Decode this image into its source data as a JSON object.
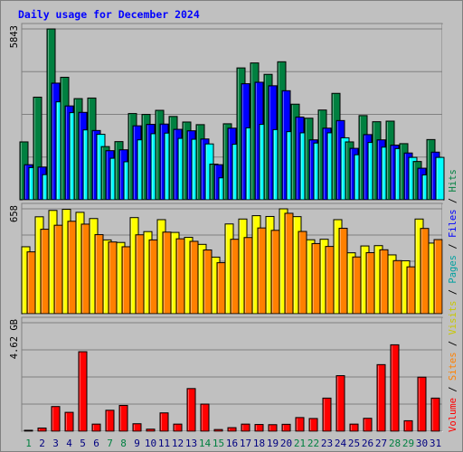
{
  "chart_data": {
    "type": "bar",
    "title": "Daily usage for December 2024",
    "categories": [
      "1",
      "2",
      "3",
      "4",
      "5",
      "6",
      "7",
      "8",
      "9",
      "10",
      "11",
      "12",
      "13",
      "14",
      "15",
      "16",
      "17",
      "18",
      "19",
      "20",
      "21",
      "22",
      "23",
      "24",
      "25",
      "26",
      "27",
      "28",
      "29",
      "30",
      "31"
    ],
    "weekend_days": [
      "1",
      "7",
      "8",
      "14",
      "15",
      "21",
      "22",
      "28",
      "29"
    ],
    "panels": [
      {
        "name": "hits-pages-files",
        "scale_label": "5843",
        "ylim": [
          0,
          5843
        ],
        "series": [
          {
            "name": "Hits",
            "color": "#008040",
            "values": [
              1980,
              3510,
              5843,
              4190,
              3460,
              3480,
              1820,
              1990,
              2950,
              2920,
              3060,
              2850,
              2660,
              2570,
              1220,
              2600,
              4510,
              4680,
              4290,
              4720,
              3270,
              2790,
              3070,
              3640,
              1980,
              2880,
              2670,
              2690,
              1920,
              1310,
              2060
            ]
          },
          {
            "name": "Files",
            "color": "#0000ff",
            "values": [
              1200,
              1120,
              3990,
              3210,
              2990,
              2370,
              1680,
              1710,
              2530,
              2580,
              2590,
              2410,
              2360,
              2080,
              1200,
              2450,
              3970,
              4020,
              3900,
              3730,
              2830,
              2050,
              2450,
              2710,
              1760,
              2230,
              2050,
              1870,
              1600,
              1080,
              1630
            ]
          },
          {
            "name": "Pages",
            "color": "#00ffff",
            "values": [
              1100,
              860,
              3350,
              2980,
              2390,
              2240,
              1420,
              1300,
              2050,
              2260,
              2280,
              2100,
              2070,
              1910,
              750,
              1900,
              2460,
              2580,
              2400,
              2330,
              2290,
              1940,
              2290,
              2120,
              1540,
              1960,
              1800,
              1750,
              1450,
              850,
              1450
            ]
          }
        ]
      },
      {
        "name": "visits-sites",
        "scale_label": "658",
        "ylim": [
          0,
          658
        ],
        "series": [
          {
            "name": "Visits",
            "color": "#ffff00",
            "values": [
              420,
              608,
              648,
              655,
              636,
              597,
              463,
              447,
              603,
              515,
              590,
              510,
              479,
              435,
              355,
              563,
              594,
              615,
              610,
              658,
              609,
              464,
              467,
              590,
              382,
              425,
              427,
              369,
              332,
              594,
              443
            ]
          },
          {
            "name": "Sites",
            "color": "#ff8000",
            "values": [
              388,
              530,
              555,
              580,
              562,
              496,
              450,
              420,
              495,
              463,
              512,
              470,
              454,
              400,
              320,
              467,
              478,
              538,
              523,
              630,
              516,
              440,
              422,
              536,
              356,
              383,
              401,
              333,
              294,
              535,
              465
            ]
          }
        ]
      },
      {
        "name": "volume",
        "scale_label": "4.62 GB",
        "ylim": [
          0,
          5.8
        ],
        "series": [
          {
            "name": "Volume",
            "color": "#ff0000",
            "values": [
              0.05,
              0.17,
              1.32,
              1.01,
              4.25,
              0.38,
              1.12,
              1.38,
              0.4,
              0.11,
              0.98,
              0.38,
              2.28,
              1.45,
              0.09,
              0.19,
              0.38,
              0.36,
              0.35,
              0.37,
              0.73,
              0.68,
              1.77,
              2.97,
              0.38,
              0.69,
              3.56,
              4.62,
              0.56,
              2.89,
              1.77
            ]
          }
        ]
      }
    ],
    "legend": [
      {
        "name": "Volume",
        "color": "#ff0000"
      },
      {
        "name": "Sites",
        "color": "#ff8000"
      },
      {
        "name": "Visits",
        "color": "#ffff00"
      },
      {
        "name": "Pages",
        "color": "#00ffff"
      },
      {
        "name": "Files",
        "color": "#0000ff"
      },
      {
        "name": "Hits",
        "color": "#008040"
      }
    ],
    "legend_separator": "/",
    "legend_placement": "right-vertical",
    "grid": true,
    "colors": {
      "background": "#c0c0c0",
      "title": "#0000ff",
      "weekday_label": "#000080",
      "weekend_label": "#008040",
      "grid": "#808080",
      "panel_border": "#000000"
    }
  }
}
